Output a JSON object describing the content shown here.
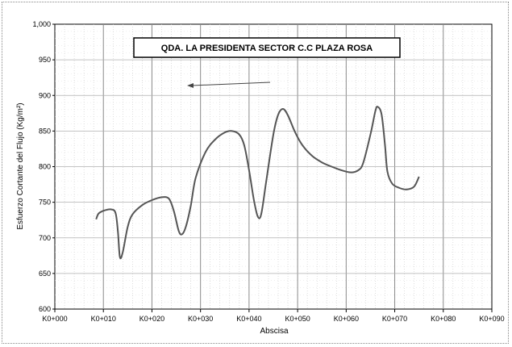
{
  "chart_data": {
    "type": "line",
    "title": "QDA. LA PRESIDENTA SECTOR C.C PLAZA ROSA",
    "xlabel": "Abscisa",
    "ylabel": "Esfuerzo Cortante del Flujo (Kg/m²)",
    "ylim": [
      600,
      1000
    ],
    "yticks": [
      600,
      650,
      700,
      750,
      800,
      850,
      900,
      950,
      1000
    ],
    "ytick_labels": [
      "600",
      "650",
      "700",
      "750",
      "800",
      "850",
      "900",
      "950",
      "1,000"
    ],
    "xlim": [
      0,
      90
    ],
    "xticks": [
      0,
      10,
      20,
      30,
      40,
      50,
      60,
      70,
      80,
      90
    ],
    "xtick_labels": [
      "K0+000",
      "K0+010",
      "K0+020",
      "K0+030",
      "K0+040",
      "K0+050",
      "K0+060",
      "K0+070",
      "K0+080",
      "K0+090"
    ],
    "grid": true,
    "annotation": "arrow pointing left",
    "series": [
      {
        "name": "",
        "color": "#555555",
        "points": [
          [
            8.5,
            726
          ],
          [
            9.0,
            734
          ],
          [
            10.0,
            738
          ],
          [
            11.5,
            740
          ],
          [
            12.5,
            735
          ],
          [
            13.0,
            708
          ],
          [
            13.4,
            673
          ],
          [
            14.0,
            680
          ],
          [
            15.0,
            715
          ],
          [
            16.0,
            733
          ],
          [
            18.0,
            746
          ],
          [
            20.0,
            753
          ],
          [
            22.0,
            757
          ],
          [
            23.5,
            755
          ],
          [
            24.5,
            738
          ],
          [
            25.5,
            710
          ],
          [
            26.2,
            705
          ],
          [
            27.0,
            716
          ],
          [
            28.0,
            745
          ],
          [
            29.0,
            784
          ],
          [
            31.0,
            820
          ],
          [
            33.0,
            838
          ],
          [
            35.0,
            848
          ],
          [
            36.5,
            850
          ],
          [
            38.0,
            845
          ],
          [
            39.0,
            830
          ],
          [
            40.0,
            795
          ],
          [
            41.0,
            753
          ],
          [
            41.8,
            730
          ],
          [
            42.5,
            733
          ],
          [
            43.5,
            778
          ],
          [
            45.0,
            845
          ],
          [
            46.0,
            873
          ],
          [
            47.0,
            881
          ],
          [
            48.0,
            872
          ],
          [
            49.5,
            848
          ],
          [
            51.0,
            830
          ],
          [
            53.0,
            815
          ],
          [
            55.0,
            806
          ],
          [
            57.0,
            800
          ],
          [
            59.0,
            795
          ],
          [
            61.0,
            792
          ],
          [
            62.5,
            795
          ],
          [
            63.5,
            805
          ],
          [
            65.0,
            845
          ],
          [
            66.0,
            878
          ],
          [
            66.5,
            884
          ],
          [
            67.3,
            873
          ],
          [
            68.0,
            830
          ],
          [
            68.5,
            793
          ],
          [
            69.5,
            776
          ],
          [
            71.0,
            770
          ],
          [
            72.5,
            768
          ],
          [
            74.0,
            772
          ],
          [
            75.0,
            786
          ]
        ]
      }
    ]
  }
}
